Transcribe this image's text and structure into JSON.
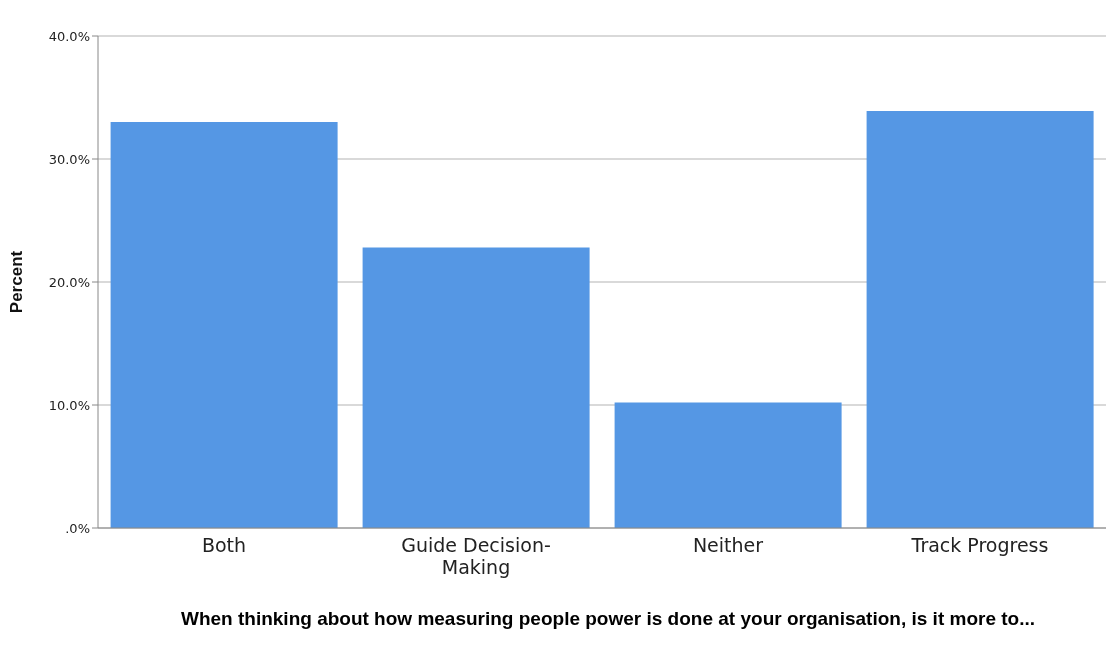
{
  "chart_data": {
    "type": "bar",
    "categories": [
      "Both",
      "Guide Decision-Making",
      "Neither",
      "Track Progress"
    ],
    "values": [
      33.0,
      22.8,
      10.2,
      33.9
    ],
    "color": "#5597e4",
    "ylim": [
      0,
      40
    ],
    "yticks": [
      {
        "value": 0,
        "label": ".0%"
      },
      {
        "value": 10,
        "label": "10.0%"
      },
      {
        "value": 20,
        "label": "20.0%"
      },
      {
        "value": 30,
        "label": "30.0%"
      },
      {
        "value": 40,
        "label": "40.0%"
      }
    ],
    "ylabel": "Percent",
    "xlabel": "When thinking about how measuring people power is done at your organisation, is it more to...",
    "grid": "y"
  }
}
